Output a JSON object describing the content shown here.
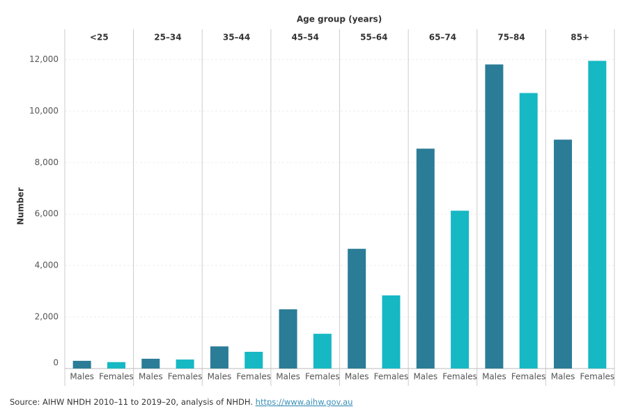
{
  "chart_data": {
    "type": "bar",
    "x_label": "Age group (years)",
    "y_label": "Number",
    "categories": [
      "<25",
      "25–34",
      "35–44",
      "45–54",
      "55–64",
      "65–74",
      "75–84",
      "85+"
    ],
    "series": [
      {
        "name": "Males",
        "color": "#2b7c97",
        "values": [
          300,
          380,
          860,
          2300,
          4650,
          8540,
          11810,
          8890
        ]
      },
      {
        "name": "Females",
        "color": "#16b8c4",
        "values": [
          250,
          350,
          650,
          1350,
          2840,
          6130,
          10700,
          11950
        ]
      }
    ],
    "ylim": [
      0,
      12500
    ],
    "yticks": [
      0,
      {
        "value": 2000,
        "label": "2,000"
      },
      {
        "value": 4000,
        "label": "4,000"
      },
      {
        "value": 6000,
        "label": "6,000"
      },
      {
        "value": 8000,
        "label": "8,000"
      },
      {
        "value": 10000,
        "label": "10,000"
      },
      {
        "value": 12000,
        "label": "12,000"
      }
    ],
    "grid": true,
    "source": "Source: AIHW NHDH 2010–11 to 2019–20, analysis of NHDH.",
    "source_link": "https://www.aihw.gov.au"
  }
}
